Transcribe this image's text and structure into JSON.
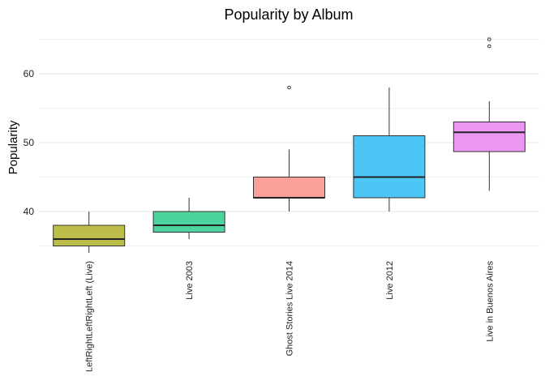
{
  "chart_data": {
    "type": "boxplot",
    "title": "Popularity by Album",
    "xlabel": "",
    "ylabel": "Popularity",
    "ylim": [
      34,
      66
    ],
    "yticks": [
      40,
      50,
      60
    ],
    "grid": true,
    "legend": "none",
    "categories": [
      "LeftRightLeftRightLeft (Live)",
      "Live 2003",
      "Ghost Stories Live 2014",
      "Live 2012",
      "Live in Buenos Aires"
    ],
    "series": [
      {
        "category": "LeftRightLeftRightLeft (Live)",
        "min": 34,
        "q1": 35,
        "median": 36,
        "q3": 38,
        "max": 40,
        "outliers": [],
        "color": "#BDBD4A"
      },
      {
        "category": "Live 2003",
        "min": 36,
        "q1": 37,
        "median": 38,
        "q3": 40,
        "max": 42,
        "outliers": [],
        "color": "#4DD39E"
      },
      {
        "category": "Ghost Stories Live 2014",
        "min": 40,
        "q1": 42,
        "median": 42,
        "q3": 45,
        "max": 49,
        "outliers": [
          58
        ],
        "color": "#F8A099"
      },
      {
        "category": "Live 2012",
        "min": 40,
        "q1": 42,
        "median": 45,
        "q3": 51,
        "max": 58,
        "outliers": [],
        "color": "#4CC6F5"
      },
      {
        "category": "Live in Buenos Aires",
        "min": 43,
        "q1": 48.7,
        "median": 51.5,
        "q3": 53,
        "max": 56,
        "outliers": [
          64,
          65
        ],
        "color": "#EE97F2"
      }
    ]
  }
}
